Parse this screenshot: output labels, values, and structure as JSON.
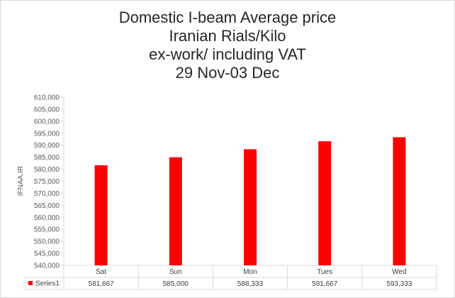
{
  "chart_data": {
    "type": "bar",
    "title_lines": [
      "Domestic I-beam Average price",
      "Iranian Rials/Kilo",
      "ex-work/ including VAT",
      "29 Nov-03 Dec"
    ],
    "categories": [
      "Sat",
      "Sun",
      "Mon",
      "Tues",
      "Wed"
    ],
    "series": [
      {
        "name": "Series1",
        "color": "#ff0000",
        "values": [
          581667,
          585000,
          588333,
          591667,
          593333
        ],
        "value_labels": [
          "581,667",
          "585,000",
          "588,333",
          "591,667",
          "593,333"
        ]
      }
    ],
    "ylim": [
      540000,
      610000
    ],
    "ytick_step": 5000,
    "ytick_labels": [
      "610,000",
      "605,000",
      "600,000",
      "595,000",
      "590,000",
      "585,000",
      "580,000",
      "575,000",
      "570,000",
      "565,000",
      "560,000",
      "555,000",
      "550,000",
      "545,000",
      "540,000"
    ],
    "watermark": "IFNAA.IR",
    "data_table": true,
    "grid": false
  }
}
